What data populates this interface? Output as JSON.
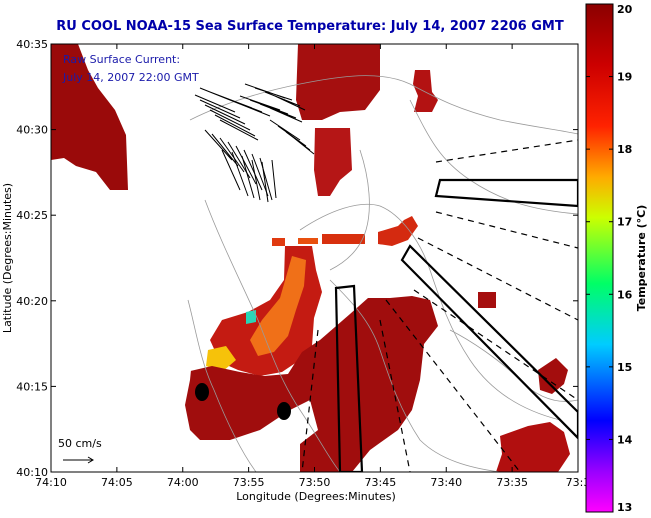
{
  "chart_data": {
    "type": "heatmap",
    "title": "RU COOL  NOAA-15  Sea Surface Temperature:  July 14, 2007 2206 GMT",
    "xlabel": "Longitude (Degrees:Minutes)",
    "ylabel": "Latitude (Degrees:Minutes)",
    "x_ticks": [
      "74:10",
      "74:05",
      "74:00",
      "73:55",
      "73:50",
      "73:45",
      "73:40",
      "73:35",
      "73:3"
    ],
    "y_ticks": [
      "40:35",
      "40:30",
      "40:25",
      "40:20",
      "40:15",
      "40:10"
    ],
    "colorbar": {
      "label": "Temperature (°C)",
      "ticks": [
        "20",
        "19",
        "18",
        "17",
        "16",
        "15",
        "14",
        "13"
      ],
      "range": [
        13,
        20
      ],
      "colors": [
        "#ff00ff",
        "#9900ff",
        "#0000ff",
        "#00ccff",
        "#00ff66",
        "#ccff00",
        "#ffaa00",
        "#ff2200",
        "#cc0000",
        "#8b0000"
      ]
    },
    "annotations": {
      "line1": "Raw Surface Current:",
      "line2": "July 14, 2007 22:00 GMT",
      "scale": "50 cm/s"
    }
  }
}
